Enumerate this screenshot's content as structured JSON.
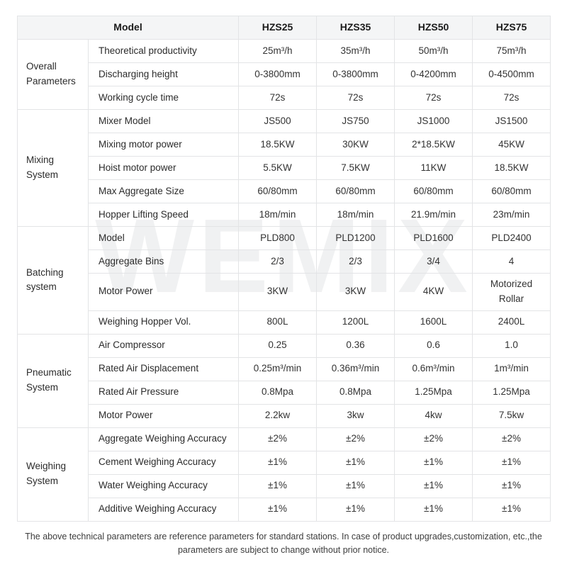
{
  "watermark": {
    "text": "WEMIX"
  },
  "table": {
    "header": {
      "model_label": "Model",
      "columns": [
        "HZS25",
        "HZS35",
        "HZS50",
        "HZS75"
      ]
    },
    "groups": [
      {
        "label": "Overall Parameters",
        "rows": [
          {
            "param": "Theoretical productivity",
            "values": [
              "25m³/h",
              "35m³/h",
              "50m³/h",
              "75m³/h"
            ]
          },
          {
            "param": "Discharging height",
            "values": [
              "0-3800mm",
              "0-3800mm",
              "0-4200mm",
              "0-4500mm"
            ]
          },
          {
            "param": "Working cycle time",
            "values": [
              "72s",
              "72s",
              "72s",
              "72s"
            ]
          }
        ]
      },
      {
        "label": "Mixing System",
        "rows": [
          {
            "param": "Mixer Model",
            "values": [
              "JS500",
              "JS750",
              "JS1000",
              "JS1500"
            ]
          },
          {
            "param": "Mixing motor power",
            "values": [
              "18.5KW",
              "30KW",
              "2*18.5KW",
              "45KW"
            ]
          },
          {
            "param": "Hoist motor power",
            "values": [
              "5.5KW",
              "7.5KW",
              "11KW",
              "18.5KW"
            ]
          },
          {
            "param": "Max Aggregate Size",
            "values": [
              "60/80mm",
              "60/80mm",
              "60/80mm",
              "60/80mm"
            ]
          },
          {
            "param": "Hopper Lifting Speed",
            "values": [
              "18m/min",
              "18m/min",
              "21.9m/min",
              "23m/min"
            ]
          }
        ]
      },
      {
        "label": "Batching system",
        "rows": [
          {
            "param": "Model",
            "values": [
              "PLD800",
              "PLD1200",
              "PLD1600",
              "PLD2400"
            ]
          },
          {
            "param": "Aggregate Bins",
            "values": [
              "2/3",
              "2/3",
              "3/4",
              "4"
            ]
          },
          {
            "param": "Motor Power",
            "values": [
              "3KW",
              "3KW",
              "4KW",
              "Motorized Rollar"
            ]
          },
          {
            "param": "Weighing Hopper Vol.",
            "values": [
              "800L",
              "1200L",
              "1600L",
              "2400L"
            ]
          }
        ]
      },
      {
        "label": "Pneumatic System",
        "rows": [
          {
            "param": "Air Compressor",
            "values": [
              "0.25",
              "0.36",
              "0.6",
              "1.0"
            ]
          },
          {
            "param": "Rated Air Displacement",
            "values": [
              "0.25m³/min",
              "0.36m³/min",
              "0.6m³/min",
              "1m³/min"
            ]
          },
          {
            "param": "Rated Air Pressure",
            "values": [
              "0.8Mpa",
              "0.8Mpa",
              "1.25Mpa",
              "1.25Mpa"
            ]
          },
          {
            "param": "Motor Power",
            "values": [
              "2.2kw",
              "3kw",
              "4kw",
              "7.5kw"
            ]
          }
        ]
      },
      {
        "label": "Weighing System",
        "rows": [
          {
            "param": "Aggregate Weighing Accuracy",
            "values": [
              "±2%",
              "±2%",
              "±2%",
              "±2%"
            ]
          },
          {
            "param": "Cement Weighing Accuracy",
            "values": [
              "±1%",
              "±1%",
              "±1%",
              "±1%"
            ]
          },
          {
            "param": "Water Weighing Accuracy",
            "values": [
              "±1%",
              "±1%",
              "±1%",
              "±1%"
            ]
          },
          {
            "param": "Additive Weighing Accuracy",
            "values": [
              "±1%",
              "±1%",
              "±1%",
              "±1%"
            ]
          }
        ]
      }
    ]
  },
  "footer": {
    "text": "The above technical parameters are reference parameters for standard stations. In case of product upgrades,customization, etc.,the parameters are subject to change without prior notice."
  }
}
